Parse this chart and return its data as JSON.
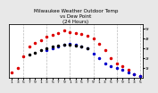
{
  "title": "Milwaukee Weather Outdoor Temp\nvs Dew Point\n(24 Hours)",
  "bg_color": "#e8e8e8",
  "plot_bg": "#ffffff",
  "grid_color": "#bbbbbb",
  "x_labels": [
    "1",
    "3",
    "5",
    "7",
    "9",
    "1",
    "3",
    "5",
    "7",
    "9",
    "1",
    "3",
    "5",
    "7",
    "9",
    "1",
    "3",
    "5",
    "7",
    "9",
    "1",
    "3",
    "5"
  ],
  "temp_x": [
    0,
    1,
    2,
    3,
    4,
    5,
    6,
    7,
    8,
    9,
    10,
    11,
    12,
    13,
    14,
    15,
    16,
    17,
    18,
    19,
    20,
    21,
    22
  ],
  "temp_y": [
    6,
    10,
    22,
    32,
    36,
    38,
    42,
    44,
    46,
    48,
    47,
    46,
    45,
    43,
    40,
    35,
    28,
    20,
    15,
    12,
    8,
    4,
    2
  ],
  "dew_x": [
    6,
    7,
    8,
    9,
    10,
    11,
    12,
    13,
    14,
    15,
    16,
    17,
    18,
    19,
    20,
    21,
    22
  ],
  "dew_y": [
    28,
    30,
    32,
    34,
    35,
    34,
    32,
    30,
    25,
    20,
    15,
    12,
    10,
    8,
    6,
    4,
    2
  ],
  "black_x": [
    3,
    4,
    5,
    6,
    7,
    8,
    9,
    10,
    11,
    12,
    13
  ],
  "black_y": [
    24,
    26,
    28,
    30,
    32,
    33,
    34,
    34,
    33,
    32,
    30
  ],
  "temp_color": "#dd0000",
  "dew_color": "#0000cc",
  "black_color": "#000000",
  "dot_size": 3,
  "ylim": [
    0,
    55
  ],
  "ytick_positions": [
    10,
    20,
    30,
    40,
    50
  ],
  "ytick_labels": [
    "1f",
    "2f",
    "3f",
    "4f",
    "5f"
  ],
  "vgrid_positions": [
    2,
    6,
    10,
    14,
    18,
    22
  ],
  "title_fontsize": 4.0,
  "tick_fontsize": 3.2,
  "n_xticks": 23
}
